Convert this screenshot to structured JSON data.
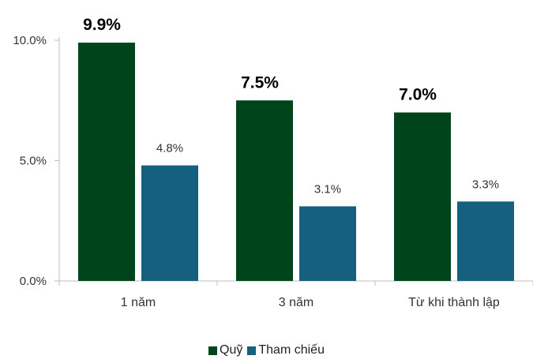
{
  "chart_data": {
    "type": "bar",
    "categories": [
      "1 năm",
      "3 năm",
      "Từ khi thành lập"
    ],
    "series": [
      {
        "name": "Quỹ",
        "values": [
          9.9,
          7.5,
          7.0
        ],
        "labels": [
          "9.9%",
          "7.5%",
          "7.0%"
        ],
        "color": "#00441B",
        "label_bold": true
      },
      {
        "name": "Tham chiếu",
        "values": [
          4.8,
          3.1,
          3.3
        ],
        "labels": [
          "4.8%",
          "3.1%",
          "3.3%"
        ],
        "color": "#15607F",
        "label_bold": false
      }
    ],
    "y_ticks": [
      {
        "value": 0,
        "label": "0.0%"
      },
      {
        "value": 5,
        "label": "5.0%"
      },
      {
        "value": 10,
        "label": "10.0%"
      }
    ],
    "ylim": [
      0,
      10
    ],
    "grid": false,
    "legend_position": "bottom"
  }
}
